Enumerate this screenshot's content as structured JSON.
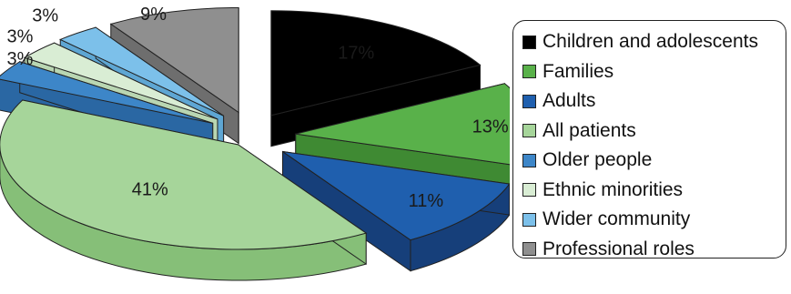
{
  "chart_data": {
    "type": "pie",
    "categories": [
      "Children and adolescents",
      "Families",
      "Adults",
      "All patients",
      "Older people",
      "Ethnic minorities",
      "Wider community",
      "Professional roles"
    ],
    "values": [
      17,
      13,
      11,
      41,
      3,
      3,
      3,
      9
    ],
    "labels": [
      "17%",
      "13%",
      "11%",
      "41%",
      "3%",
      "3%",
      "3%",
      "9%"
    ],
    "colors": [
      "#000000",
      "#59b14a",
      "#1f5fae",
      "#a6d59a",
      "#3d86c8",
      "#d9edd4",
      "#7cc0ea",
      "#8f8f8f"
    ],
    "side_colors": [
      "#000000",
      "#3f8a33",
      "#163f7a",
      "#86bf78",
      "#2a67a3",
      "#b9d6b2",
      "#5ea6d3",
      "#6e6e6e"
    ],
    "exploded": true,
    "style": "3d",
    "legend_position": "right"
  }
}
